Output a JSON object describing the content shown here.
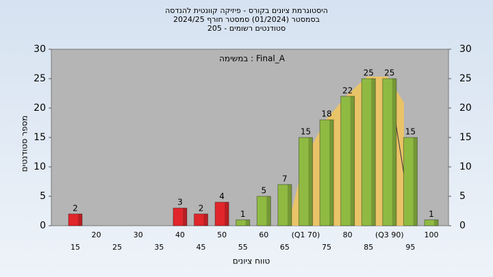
{
  "chart_data": {
    "type": "bar",
    "title": [
      "היסטוגרמת ציונים בקורס - פיזיקה קוונטית להנדסה",
      "בסמסטר  (01/2024)  סמסטר חורף 2024/25",
      "סטודנטים רשומים - 205"
    ],
    "annotation": "במשימה : Final_A",
    "x_label": "טווח ציונים",
    "y_label": "מספר סטודנטים",
    "categories": [
      "15",
      "20",
      "25",
      "30",
      "35",
      "40",
      "45",
      "50",
      "55",
      "60",
      "65",
      "(Q1 70)",
      "75",
      "80",
      "85",
      "(Q3 90)",
      "95",
      "100"
    ],
    "values": [
      2,
      null,
      null,
      null,
      null,
      3,
      2,
      4,
      1,
      5,
      7,
      15,
      18,
      22,
      25,
      25,
      15,
      1
    ],
    "colors": [
      "#e0262b",
      null,
      null,
      null,
      null,
      "#e0262b",
      "#e0262b",
      "#e0262b",
      "#8fba42",
      "#8fba42",
      "#8fba42",
      "#8fba42",
      "#8fba42",
      "#8fba42",
      "#8fba42",
      "#8fba42",
      "#8fba42",
      "#8fba42"
    ],
    "ylim": [
      0,
      30
    ],
    "yticks": [
      0,
      5,
      10,
      15,
      20,
      25,
      30
    ],
    "y2lim": [
      0,
      30
    ],
    "y2ticks": [
      0,
      5,
      10,
      15,
      20,
      25,
      30
    ],
    "grid": false
  }
}
